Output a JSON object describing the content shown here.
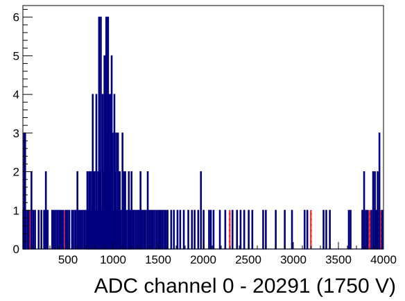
{
  "chart_data": {
    "type": "bar",
    "title": "",
    "xlabel": "ADC channel 0 - 20291 (1750 V)",
    "ylabel": "",
    "xlim": [
      0,
      4000
    ],
    "ylim": [
      0,
      6.3
    ],
    "bin_width": 10,
    "x_ticks": [
      500,
      1000,
      1500,
      2000,
      2500,
      3000,
      3500,
      4000
    ],
    "y_ticks": [
      0,
      1,
      2,
      3,
      4,
      5,
      6
    ],
    "grid": false,
    "legend": "none",
    "colors": {
      "main": "#00007f",
      "overlay": "#ff0000"
    },
    "series": [
      {
        "style": "outline",
        "points": [
          [
            0,
            1
          ],
          [
            10,
            3
          ],
          [
            20,
            3
          ],
          [
            30,
            1
          ],
          [
            50,
            1
          ],
          [
            60,
            1
          ],
          [
            90,
            2
          ],
          [
            110,
            1
          ],
          [
            130,
            1
          ],
          [
            170,
            1
          ],
          [
            200,
            1
          ],
          [
            230,
            1
          ],
          [
            250,
            2
          ],
          [
            270,
            1
          ],
          [
            320,
            1
          ],
          [
            340,
            1
          ],
          [
            360,
            1
          ],
          [
            380,
            1
          ],
          [
            400,
            1
          ],
          [
            420,
            1
          ],
          [
            440,
            1
          ],
          [
            470,
            1
          ],
          [
            490,
            1
          ],
          [
            510,
            1
          ],
          [
            540,
            1
          ],
          [
            560,
            1
          ],
          [
            580,
            1
          ],
          [
            600,
            2
          ],
          [
            620,
            1
          ],
          [
            640,
            1
          ],
          [
            660,
            1
          ],
          [
            680,
            1
          ],
          [
            700,
            1
          ],
          [
            710,
            2
          ],
          [
            720,
            1
          ],
          [
            730,
            2
          ],
          [
            740,
            2
          ],
          [
            750,
            1
          ],
          [
            760,
            2
          ],
          [
            770,
            4
          ],
          [
            780,
            2
          ],
          [
            790,
            2
          ],
          [
            800,
            1
          ],
          [
            810,
            4
          ],
          [
            820,
            1
          ],
          [
            830,
            2
          ],
          [
            840,
            6
          ],
          [
            850,
            2
          ],
          [
            860,
            6
          ],
          [
            870,
            1
          ],
          [
            880,
            4
          ],
          [
            890,
            2
          ],
          [
            900,
            5
          ],
          [
            910,
            4
          ],
          [
            920,
            6
          ],
          [
            930,
            3
          ],
          [
            940,
            6
          ],
          [
            950,
            4
          ],
          [
            960,
            2
          ],
          [
            970,
            4
          ],
          [
            980,
            5
          ],
          [
            990,
            3
          ],
          [
            1000,
            1
          ],
          [
            1010,
            4
          ],
          [
            1020,
            2
          ],
          [
            1030,
            3
          ],
          [
            1040,
            1
          ],
          [
            1050,
            3
          ],
          [
            1060,
            1
          ],
          [
            1070,
            2
          ],
          [
            1080,
            1
          ],
          [
            1100,
            3
          ],
          [
            1110,
            1
          ],
          [
            1120,
            2
          ],
          [
            1130,
            2
          ],
          [
            1140,
            1
          ],
          [
            1160,
            1
          ],
          [
            1170,
            2
          ],
          [
            1180,
            1
          ],
          [
            1190,
            1
          ],
          [
            1200,
            2
          ],
          [
            1220,
            1
          ],
          [
            1230,
            1
          ],
          [
            1250,
            1
          ],
          [
            1270,
            1
          ],
          [
            1290,
            1
          ],
          [
            1300,
            2
          ],
          [
            1320,
            1
          ],
          [
            1340,
            1
          ],
          [
            1360,
            1
          ],
          [
            1380,
            2
          ],
          [
            1400,
            1
          ],
          [
            1420,
            1
          ],
          [
            1440,
            1
          ],
          [
            1460,
            1
          ],
          [
            1480,
            1
          ],
          [
            1500,
            1
          ],
          [
            1520,
            1
          ],
          [
            1540,
            1
          ],
          [
            1560,
            1
          ],
          [
            1580,
            1
          ],
          [
            1600,
            1
          ],
          [
            1640,
            1
          ],
          [
            1670,
            1
          ],
          [
            1710,
            1
          ],
          [
            1740,
            1
          ],
          [
            1780,
            1
          ],
          [
            1830,
            1
          ],
          [
            1870,
            1
          ],
          [
            1900,
            1
          ],
          [
            1940,
            1
          ],
          [
            1970,
            2
          ],
          [
            2000,
            1
          ],
          [
            2060,
            1
          ],
          [
            2080,
            1
          ],
          [
            2110,
            1
          ],
          [
            2180,
            1
          ],
          [
            2240,
            1
          ],
          [
            2320,
            1
          ],
          [
            2370,
            1
          ],
          [
            2410,
            1
          ],
          [
            2450,
            1
          ],
          [
            2500,
            1
          ],
          [
            2540,
            1
          ],
          [
            2660,
            1
          ],
          [
            2690,
            1
          ],
          [
            2800,
            1
          ],
          [
            2900,
            1
          ],
          [
            2980,
            1
          ],
          [
            3120,
            1
          ],
          [
            3150,
            1
          ],
          [
            3330,
            1
          ],
          [
            3360,
            1
          ],
          [
            3400,
            1
          ],
          [
            3610,
            1
          ],
          [
            3630,
            1
          ],
          [
            3760,
            1
          ],
          [
            3780,
            2
          ],
          [
            3800,
            1
          ],
          [
            3820,
            1
          ],
          [
            3860,
            1
          ],
          [
            3880,
            2
          ],
          [
            3900,
            2
          ],
          [
            3920,
            1
          ],
          [
            3930,
            2
          ],
          [
            3950,
            3
          ],
          [
            3980,
            1
          ]
        ]
      },
      {
        "style": "hatched",
        "points": [
          [
            0,
            1
          ],
          [
            50,
            1
          ],
          [
            70,
            1
          ],
          [
            130,
            1
          ],
          [
            240,
            1
          ],
          [
            360,
            1
          ],
          [
            460,
            1
          ],
          [
            660,
            1
          ],
          [
            710,
            1
          ],
          [
            740,
            1
          ],
          [
            770,
            1
          ],
          [
            790,
            1
          ],
          [
            810,
            1
          ],
          [
            840,
            1
          ],
          [
            860,
            1
          ],
          [
            890,
            1
          ],
          [
            920,
            2
          ],
          [
            930,
            2
          ],
          [
            940,
            2
          ],
          [
            960,
            2
          ],
          [
            970,
            2
          ],
          [
            990,
            1
          ],
          [
            1020,
            1
          ],
          [
            1040,
            1
          ],
          [
            1050,
            2
          ],
          [
            1090,
            1
          ],
          [
            1120,
            1
          ],
          [
            1180,
            1
          ],
          [
            1220,
            1
          ],
          [
            1270,
            1
          ],
          [
            1310,
            1
          ],
          [
            1350,
            1
          ],
          [
            1390,
            1
          ],
          [
            1430,
            1
          ],
          [
            1500,
            1
          ],
          [
            1570,
            1
          ],
          [
            2290,
            1
          ],
          [
            3190,
            1
          ],
          [
            3770,
            1
          ],
          [
            3840,
            1
          ],
          [
            3890,
            1
          ],
          [
            3910,
            1
          ],
          [
            3940,
            1
          ],
          [
            3970,
            1
          ]
        ]
      }
    ]
  }
}
